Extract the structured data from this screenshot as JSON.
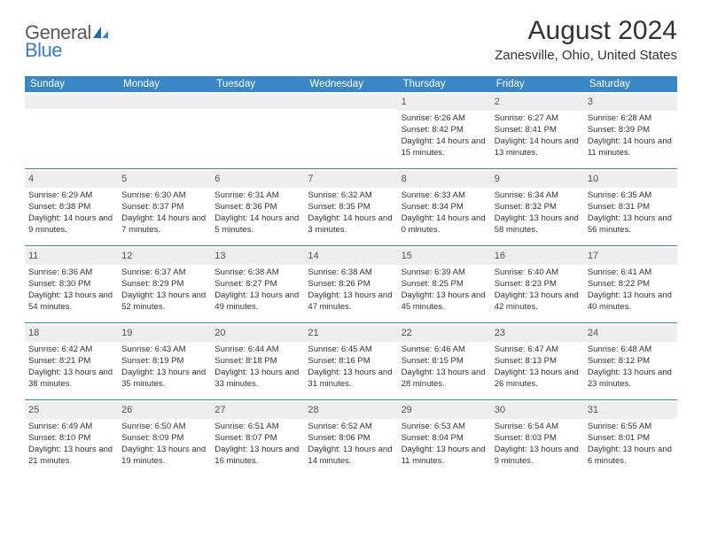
{
  "brand": {
    "general": "General",
    "blue": "Blue"
  },
  "title": "August 2024",
  "location": "Zanesville, Ohio, United States",
  "weekday_header_bg": "#3a87c8",
  "weekdays": [
    "Sunday",
    "Monday",
    "Tuesday",
    "Wednesday",
    "Thursday",
    "Friday",
    "Saturday"
  ],
  "weeks": [
    [
      {
        "n": "",
        "sr": "",
        "ss": "",
        "dl": ""
      },
      {
        "n": "",
        "sr": "",
        "ss": "",
        "dl": ""
      },
      {
        "n": "",
        "sr": "",
        "ss": "",
        "dl": ""
      },
      {
        "n": "",
        "sr": "",
        "ss": "",
        "dl": ""
      },
      {
        "n": "1",
        "sr": "Sunrise: 6:26 AM",
        "ss": "Sunset: 8:42 PM",
        "dl": "Daylight: 14 hours and 15 minutes."
      },
      {
        "n": "2",
        "sr": "Sunrise: 6:27 AM",
        "ss": "Sunset: 8:41 PM",
        "dl": "Daylight: 14 hours and 13 minutes."
      },
      {
        "n": "3",
        "sr": "Sunrise: 6:28 AM",
        "ss": "Sunset: 8:39 PM",
        "dl": "Daylight: 14 hours and 11 minutes."
      }
    ],
    [
      {
        "n": "4",
        "sr": "Sunrise: 6:29 AM",
        "ss": "Sunset: 8:38 PM",
        "dl": "Daylight: 14 hours and 9 minutes."
      },
      {
        "n": "5",
        "sr": "Sunrise: 6:30 AM",
        "ss": "Sunset: 8:37 PM",
        "dl": "Daylight: 14 hours and 7 minutes."
      },
      {
        "n": "6",
        "sr": "Sunrise: 6:31 AM",
        "ss": "Sunset: 8:36 PM",
        "dl": "Daylight: 14 hours and 5 minutes."
      },
      {
        "n": "7",
        "sr": "Sunrise: 6:32 AM",
        "ss": "Sunset: 8:35 PM",
        "dl": "Daylight: 14 hours and 3 minutes."
      },
      {
        "n": "8",
        "sr": "Sunrise: 6:33 AM",
        "ss": "Sunset: 8:34 PM",
        "dl": "Daylight: 14 hours and 0 minutes."
      },
      {
        "n": "9",
        "sr": "Sunrise: 6:34 AM",
        "ss": "Sunset: 8:32 PM",
        "dl": "Daylight: 13 hours and 58 minutes."
      },
      {
        "n": "10",
        "sr": "Sunrise: 6:35 AM",
        "ss": "Sunset: 8:31 PM",
        "dl": "Daylight: 13 hours and 56 minutes."
      }
    ],
    [
      {
        "n": "11",
        "sr": "Sunrise: 6:36 AM",
        "ss": "Sunset: 8:30 PM",
        "dl": "Daylight: 13 hours and 54 minutes."
      },
      {
        "n": "12",
        "sr": "Sunrise: 6:37 AM",
        "ss": "Sunset: 8:29 PM",
        "dl": "Daylight: 13 hours and 52 minutes."
      },
      {
        "n": "13",
        "sr": "Sunrise: 6:38 AM",
        "ss": "Sunset: 8:27 PM",
        "dl": "Daylight: 13 hours and 49 minutes."
      },
      {
        "n": "14",
        "sr": "Sunrise: 6:38 AM",
        "ss": "Sunset: 8:26 PM",
        "dl": "Daylight: 13 hours and 47 minutes."
      },
      {
        "n": "15",
        "sr": "Sunrise: 6:39 AM",
        "ss": "Sunset: 8:25 PM",
        "dl": "Daylight: 13 hours and 45 minutes."
      },
      {
        "n": "16",
        "sr": "Sunrise: 6:40 AM",
        "ss": "Sunset: 8:23 PM",
        "dl": "Daylight: 13 hours and 42 minutes."
      },
      {
        "n": "17",
        "sr": "Sunrise: 6:41 AM",
        "ss": "Sunset: 8:22 PM",
        "dl": "Daylight: 13 hours and 40 minutes."
      }
    ],
    [
      {
        "n": "18",
        "sr": "Sunrise: 6:42 AM",
        "ss": "Sunset: 8:21 PM",
        "dl": "Daylight: 13 hours and 38 minutes."
      },
      {
        "n": "19",
        "sr": "Sunrise: 6:43 AM",
        "ss": "Sunset: 8:19 PM",
        "dl": "Daylight: 13 hours and 35 minutes."
      },
      {
        "n": "20",
        "sr": "Sunrise: 6:44 AM",
        "ss": "Sunset: 8:18 PM",
        "dl": "Daylight: 13 hours and 33 minutes."
      },
      {
        "n": "21",
        "sr": "Sunrise: 6:45 AM",
        "ss": "Sunset: 8:16 PM",
        "dl": "Daylight: 13 hours and 31 minutes."
      },
      {
        "n": "22",
        "sr": "Sunrise: 6:46 AM",
        "ss": "Sunset: 8:15 PM",
        "dl": "Daylight: 13 hours and 28 minutes."
      },
      {
        "n": "23",
        "sr": "Sunrise: 6:47 AM",
        "ss": "Sunset: 8:13 PM",
        "dl": "Daylight: 13 hours and 26 minutes."
      },
      {
        "n": "24",
        "sr": "Sunrise: 6:48 AM",
        "ss": "Sunset: 8:12 PM",
        "dl": "Daylight: 13 hours and 23 minutes."
      }
    ],
    [
      {
        "n": "25",
        "sr": "Sunrise: 6:49 AM",
        "ss": "Sunset: 8:10 PM",
        "dl": "Daylight: 13 hours and 21 minutes."
      },
      {
        "n": "26",
        "sr": "Sunrise: 6:50 AM",
        "ss": "Sunset: 8:09 PM",
        "dl": "Daylight: 13 hours and 19 minutes."
      },
      {
        "n": "27",
        "sr": "Sunrise: 6:51 AM",
        "ss": "Sunset: 8:07 PM",
        "dl": "Daylight: 13 hours and 16 minutes."
      },
      {
        "n": "28",
        "sr": "Sunrise: 6:52 AM",
        "ss": "Sunset: 8:06 PM",
        "dl": "Daylight: 13 hours and 14 minutes."
      },
      {
        "n": "29",
        "sr": "Sunrise: 6:53 AM",
        "ss": "Sunset: 8:04 PM",
        "dl": "Daylight: 13 hours and 11 minutes."
      },
      {
        "n": "30",
        "sr": "Sunrise: 6:54 AM",
        "ss": "Sunset: 8:03 PM",
        "dl": "Daylight: 13 hours and 9 minutes."
      },
      {
        "n": "31",
        "sr": "Sunrise: 6:55 AM",
        "ss": "Sunset: 8:01 PM",
        "dl": "Daylight: 13 hours and 6 minutes."
      }
    ]
  ]
}
